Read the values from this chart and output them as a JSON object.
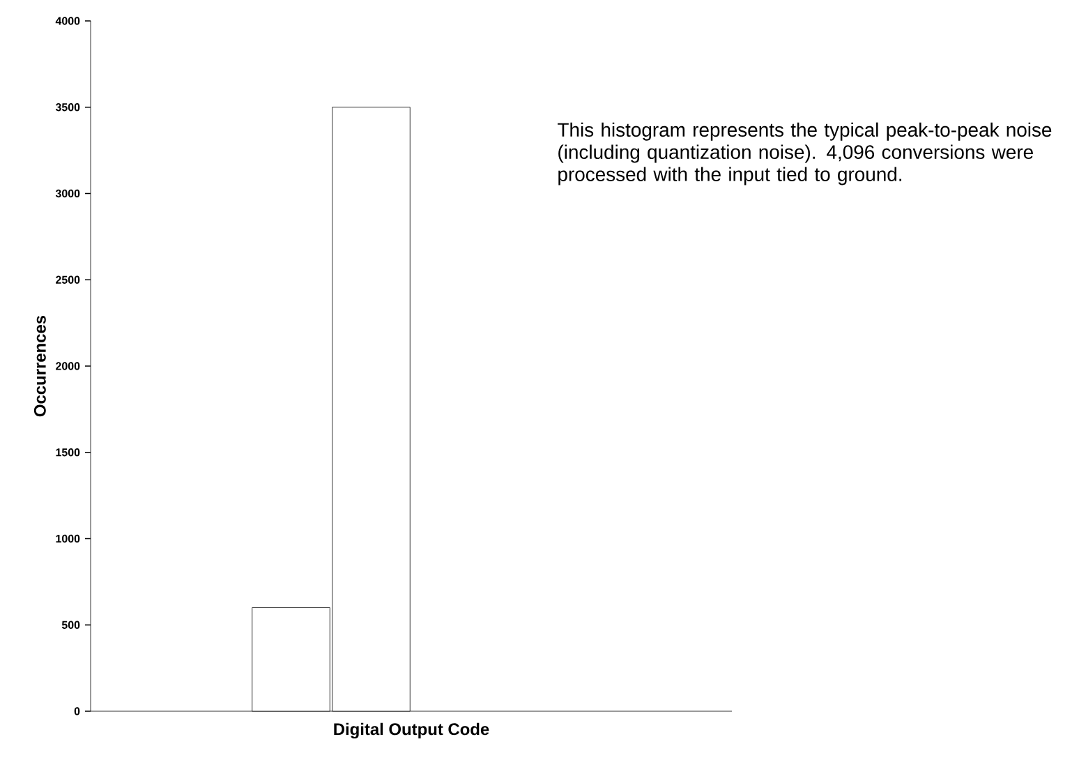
{
  "chart_data": {
    "type": "bar",
    "xlabel": "Digital Output Code",
    "ylabel": "Occurrences",
    "categories": [
      null,
      null,
      null,
      null,
      null,
      null,
      null,
      null
    ],
    "values": [
      null,
      null,
      600,
      3500,
      null,
      null,
      null,
      null
    ],
    "color": "#ffffff",
    "ylim": [
      0,
      4000
    ],
    "yticks": [
      0,
      500,
      1000,
      1500,
      2000,
      2500,
      3000,
      3500,
      4000
    ],
    "tick_labels": "y",
    "annotations": [
      "This histogram represents the typical peak-to-peak noise (including quantization noise). 4,096 conversions were processed with the input tied to ground."
    ]
  }
}
